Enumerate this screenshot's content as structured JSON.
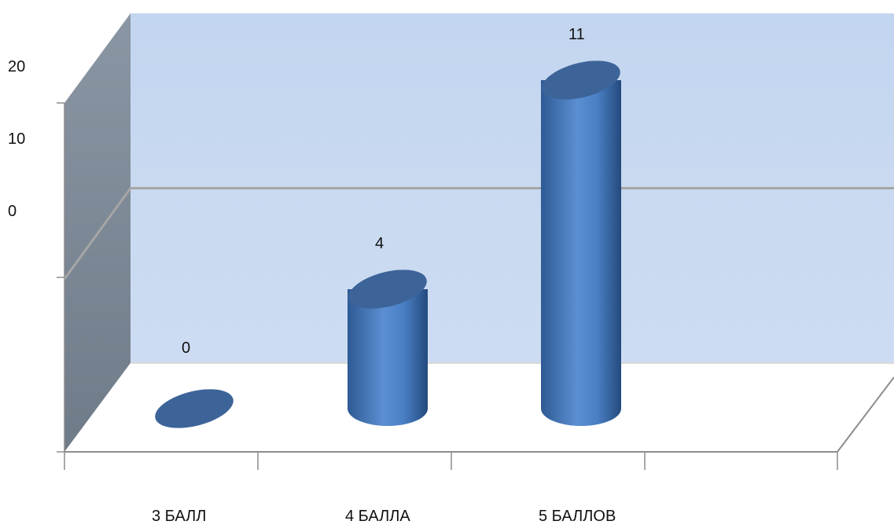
{
  "chart_data": {
    "type": "bar",
    "style": "3d-cylinder",
    "categories": [
      "3 БАЛЛ",
      "4 БАЛЛА",
      "5 БАЛЛОВ"
    ],
    "values": [
      0,
      4,
      11
    ],
    "data_labels": [
      "0",
      "4",
      "11"
    ],
    "y_ticks": [
      "20",
      "10",
      "0"
    ],
    "ylim": [
      0,
      20
    ],
    "grid": true,
    "legend": "none",
    "colors": {
      "bar": "#4f81bd",
      "bar_top": "#3d6499",
      "back_wall": "#c6d9f1",
      "side_wall": "#7f8b98",
      "floor": "#ffffff",
      "gridline": "#a6a6a6",
      "axis": "#8c8c8c"
    }
  }
}
